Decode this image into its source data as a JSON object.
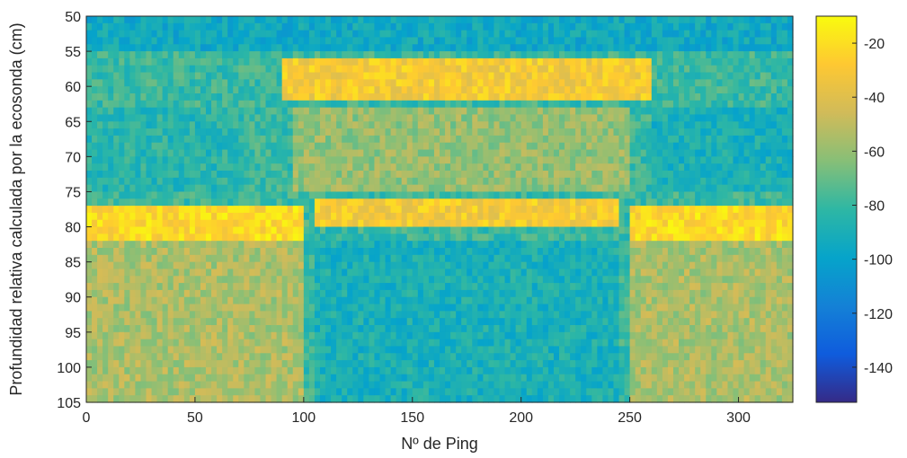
{
  "chart_data": {
    "type": "heatmap",
    "xlabel": "Nº de Ping",
    "ylabel": "Profundidad relativa calculada por la ecosonda (cm)",
    "xlim": [
      0,
      325
    ],
    "ylim": [
      105,
      50
    ],
    "y_direction": "reversed",
    "x_ticks": [
      0,
      50,
      100,
      150,
      200,
      250,
      300
    ],
    "y_ticks": [
      50,
      55,
      60,
      65,
      70,
      75,
      80,
      85,
      90,
      95,
      100,
      105
    ],
    "colorbar": {
      "colormap": "parula",
      "range": [
        -153,
        -10
      ],
      "ticks": [
        -20,
        -40,
        -60,
        -80,
        -100,
        -120,
        -140
      ]
    },
    "grid": false,
    "regions": [
      {
        "depth": [
          50,
          55
        ],
        "ping": [
          0,
          325
        ],
        "value": -95
      },
      {
        "depth": [
          56,
          62
        ],
        "ping": [
          90,
          260
        ],
        "value": -30
      },
      {
        "depth": [
          63,
          75
        ],
        "ping": [
          0,
          70
        ],
        "value": -85
      },
      {
        "depth": [
          63,
          75
        ],
        "ping": [
          95,
          250
        ],
        "value": -60
      },
      {
        "depth": [
          63,
          75
        ],
        "ping": [
          260,
          325
        ],
        "value": -90
      },
      {
        "depth": [
          76,
          80
        ],
        "ping": [
          105,
          245
        ],
        "value": -30
      },
      {
        "depth": [
          77,
          82
        ],
        "ping": [
          0,
          100
        ],
        "value": -22
      },
      {
        "depth": [
          77,
          82
        ],
        "ping": [
          250,
          325
        ],
        "value": -22
      },
      {
        "depth": [
          82,
          105
        ],
        "ping": [
          0,
          100
        ],
        "value": -55
      },
      {
        "depth": [
          82,
          105
        ],
        "ping": [
          105,
          245
        ],
        "value": -90
      },
      {
        "depth": [
          82,
          105
        ],
        "ping": [
          250,
          325
        ],
        "value": -55
      }
    ]
  }
}
